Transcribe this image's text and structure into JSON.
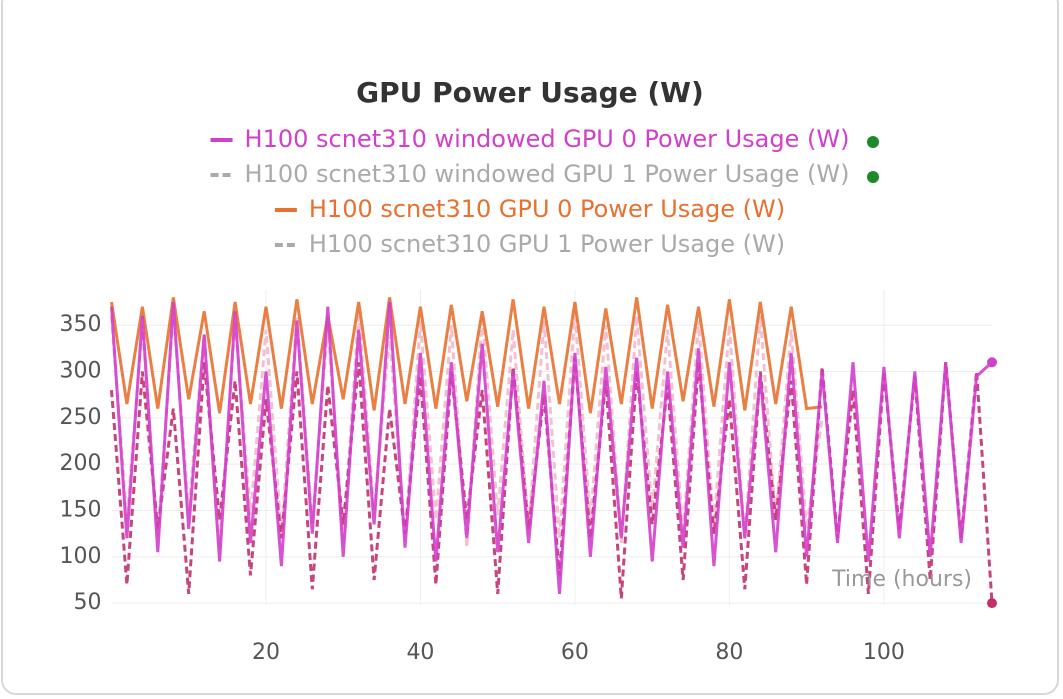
{
  "chart_data": {
    "type": "line",
    "title": "GPU Power Usage (W)",
    "x_label": "Time (hours)",
    "xlim": [
      0,
      114
    ],
    "ylim": [
      48,
      388
    ],
    "xticks": [
      20,
      40,
      60,
      80,
      100
    ],
    "yticks": [
      50,
      100,
      150,
      200,
      250,
      300,
      350
    ],
    "grid": true,
    "series": [
      {
        "name": "H100 scnet310 windowed GPU 0 Power Usage (W)",
        "color": "#d23fcb",
        "dash": false,
        "dimmed": false,
        "x": [
          0,
          2,
          4,
          6,
          8,
          10,
          12,
          14,
          16,
          18,
          20,
          22,
          24,
          26,
          28,
          30,
          32,
          34,
          36,
          38,
          40,
          42,
          44,
          46,
          48,
          50,
          52,
          54,
          56,
          58,
          60,
          62,
          64,
          66,
          68,
          70,
          72,
          74,
          76,
          78,
          80,
          82,
          84,
          86,
          88,
          90,
          92,
          94,
          96,
          98,
          100,
          102,
          104,
          106,
          108,
          110,
          112,
          114
        ],
        "values": [
          370,
          120,
          360,
          105,
          375,
          130,
          340,
          95,
          365,
          115,
          300,
          90,
          355,
          125,
          370,
          100,
          345,
          135,
          375,
          110,
          320,
          95,
          310,
          120,
          330,
          105,
          300,
          115,
          290,
          60,
          320,
          100,
          305,
          120,
          315,
          95,
          300,
          110,
          325,
          90,
          310,
          120,
          295,
          105,
          320,
          100,
          300,
          115,
          310,
          95,
          305,
          120,
          300,
          100,
          310,
          115,
          295,
          310
        ]
      },
      {
        "name": "H100 scnet310 windowed GPU 1 Power Usage (W)",
        "color": "#c2306e",
        "dash": true,
        "dimmed": true,
        "x": [
          0,
          2,
          4,
          6,
          8,
          10,
          12,
          14,
          16,
          18,
          20,
          22,
          24,
          26,
          28,
          30,
          32,
          34,
          36,
          38,
          40,
          42,
          44,
          46,
          48,
          50,
          52,
          54,
          56,
          58,
          60,
          62,
          64,
          66,
          68,
          70,
          72,
          74,
          76,
          78,
          80,
          82,
          84,
          86,
          88,
          90,
          92,
          94,
          96,
          98,
          100,
          102,
          104,
          106,
          108,
          110,
          112,
          114
        ],
        "values": [
          280,
          70,
          300,
          130,
          260,
          60,
          310,
          140,
          290,
          80,
          270,
          120,
          300,
          65,
          285,
          135,
          310,
          75,
          260,
          125,
          295,
          70,
          300,
          140,
          280,
          60,
          305,
          130,
          275,
          80,
          315,
          120,
          290,
          55,
          300,
          135,
          285,
          75,
          310,
          125,
          270,
          65,
          300,
          140,
          290,
          70,
          305,
          120,
          280,
          60,
          300,
          130,
          295,
          75,
          310,
          120,
          300,
          50
        ]
      },
      {
        "name": "H100 scnet310 GPU 0 Power Usage (W)",
        "color": "#e8712f",
        "dash": false,
        "dimmed": false,
        "x": [
          0,
          2,
          4,
          6,
          8,
          10,
          12,
          14,
          16,
          18,
          20,
          22,
          24,
          26,
          28,
          30,
          32,
          34,
          36,
          38,
          40,
          42,
          44,
          46,
          48,
          50,
          52,
          54,
          56,
          58,
          60,
          62,
          64,
          66,
          68,
          70,
          72,
          74,
          76,
          78,
          80,
          82,
          84,
          86,
          88,
          90,
          92
        ],
        "values": [
          375,
          265,
          370,
          260,
          380,
          270,
          365,
          255,
          375,
          265,
          370,
          260,
          378,
          265,
          360,
          270,
          375,
          258,
          380,
          265,
          370,
          260,
          372,
          268,
          365,
          262,
          378,
          260,
          370,
          265,
          375,
          255,
          368,
          265,
          380,
          260,
          372,
          268,
          370,
          262,
          378,
          258,
          375,
          265,
          370,
          260,
          262
        ]
      },
      {
        "name": "H100 scnet310 GPU 1 Power Usage (W)",
        "color": "#f3b9cc",
        "dash": true,
        "dimmed": true,
        "x": [
          0,
          2,
          4,
          6,
          8,
          10,
          12,
          14,
          16,
          18,
          20,
          22,
          24,
          26,
          28,
          30,
          32,
          34,
          36,
          38,
          40,
          42,
          44,
          46,
          48,
          50,
          52,
          54,
          56,
          58,
          60,
          62,
          64,
          66,
          68,
          70,
          72,
          74,
          76,
          78,
          80,
          82,
          84,
          86,
          88,
          90,
          92
        ],
        "values": [
          360,
          140,
          350,
          120,
          365,
          150,
          340,
          110,
          355,
          145,
          345,
          125,
          360,
          135,
          350,
          115,
          365,
          150,
          340,
          120,
          355,
          140,
          350,
          110,
          360,
          145,
          345,
          130,
          355,
          120,
          365,
          140,
          350,
          115,
          360,
          150,
          345,
          125,
          355,
          135,
          350,
          120,
          360,
          140,
          345,
          130,
          250
        ]
      }
    ]
  }
}
